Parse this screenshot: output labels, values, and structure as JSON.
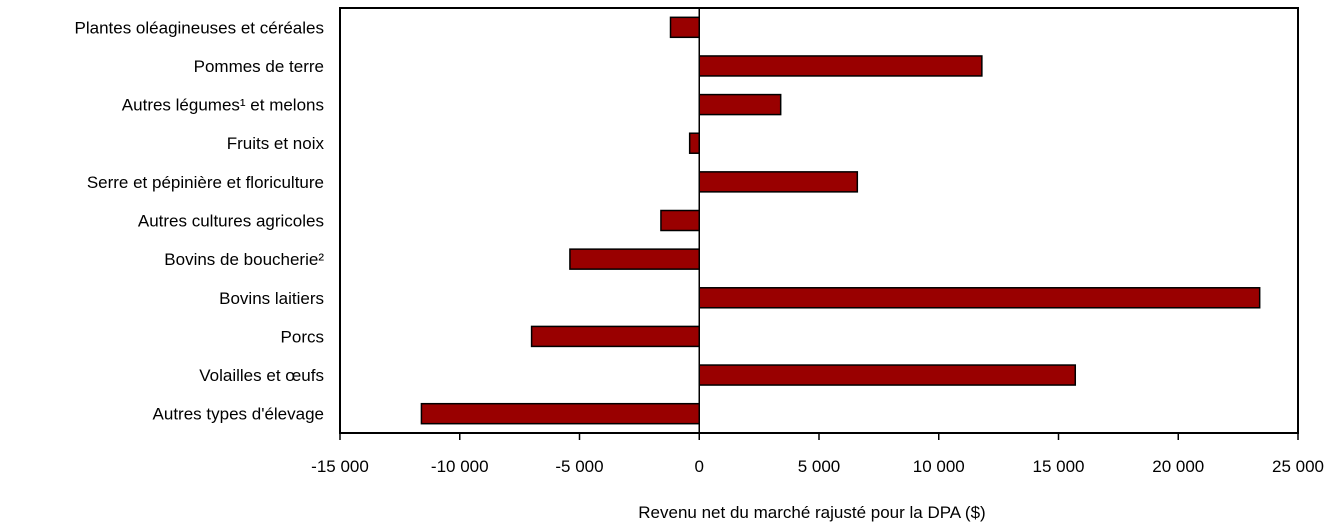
{
  "chart_data": {
    "type": "bar",
    "orientation": "horizontal",
    "categories": [
      "Plantes oléagineuses et céréales",
      "Pommes de terre",
      "Autres légumes¹ et melons",
      "Fruits et noix",
      "Serre et pépinière et floriculture",
      "Autres cultures agricoles",
      "Bovins de boucherie²",
      "Bovins laitiers",
      "Porcs",
      "Volailles et œufs",
      "Autres types d'élevage"
    ],
    "values": [
      -1200,
      11800,
      3400,
      -400,
      6600,
      -1600,
      -5400,
      23400,
      -7000,
      15700,
      -11600
    ],
    "xlim": [
      -15000,
      25000
    ],
    "xticks": [
      -15000,
      -10000,
      -5000,
      0,
      5000,
      10000,
      15000,
      20000,
      25000
    ],
    "xtick_labels": [
      "-15 000",
      "-10 000",
      "-5 000",
      "0",
      "5 000",
      "10 000",
      "15 000",
      "20 000",
      "25 000"
    ],
    "title": "",
    "xlabel": "Revenu net du marché rajusté pour la DPA ($)",
    "ylabel": "",
    "grid": false,
    "bar_color": "#990000",
    "bar_edge_color": "#000000"
  }
}
